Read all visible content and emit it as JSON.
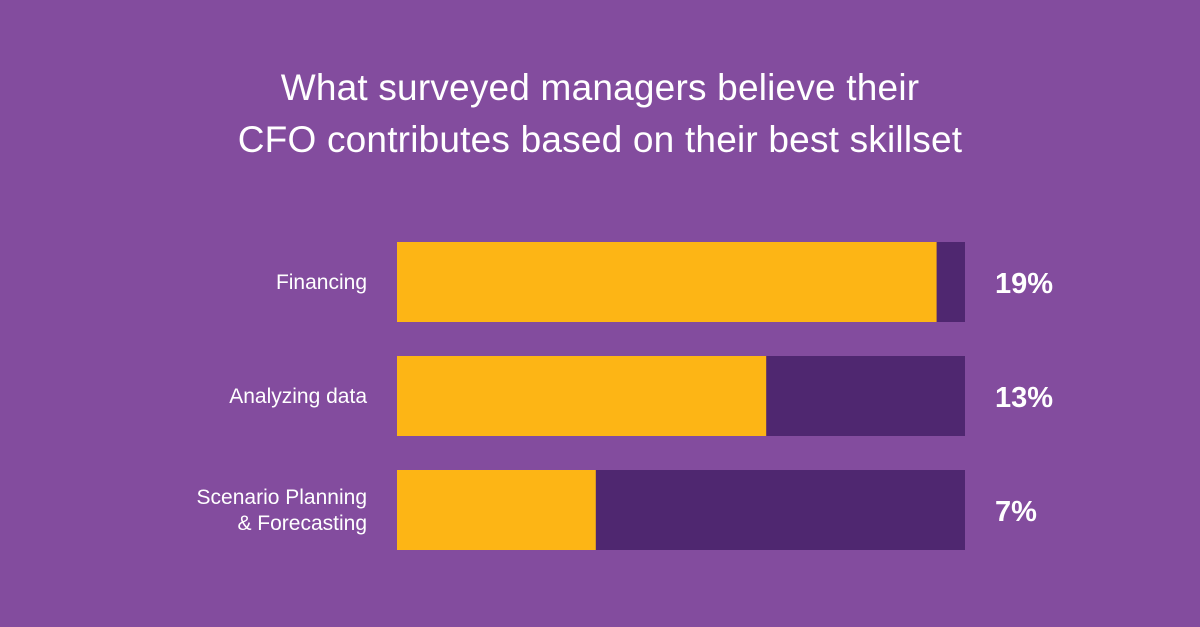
{
  "chart_data": {
    "type": "bar",
    "orientation": "horizontal",
    "title_lines": [
      "What surveyed managers believe their",
      "CFO contributes based on their best skillset"
    ],
    "categories": [
      [
        "Financing"
      ],
      [
        "Analyzing data"
      ],
      [
        "Scenario Planning",
        "& Forecasting"
      ]
    ],
    "values": [
      19,
      13,
      7
    ],
    "value_labels": [
      "19%",
      "13%",
      "7%"
    ],
    "xlim": [
      0,
      20
    ],
    "colors": {
      "bar": "#fdb515",
      "track": "#4f2770",
      "background": "#834c9e",
      "text": "#ffffff"
    }
  }
}
